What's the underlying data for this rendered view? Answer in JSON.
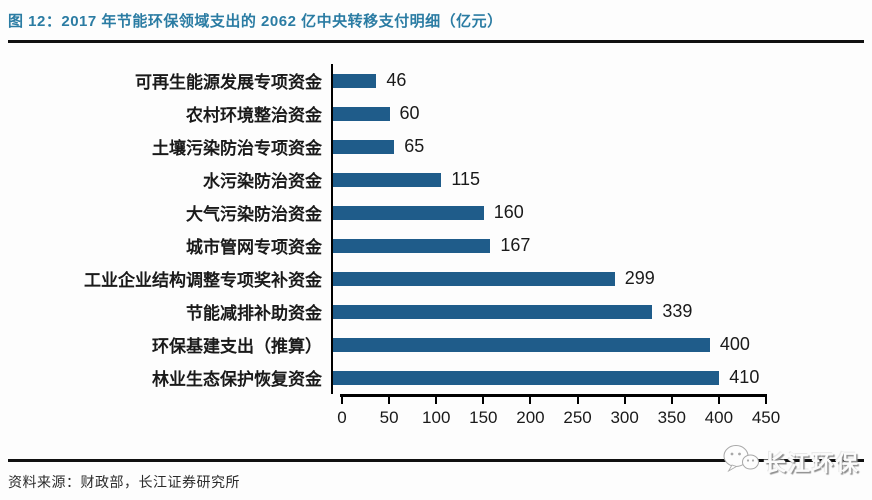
{
  "figure": {
    "title": "图 12：2017 年节能环保领域支出的 2062 亿中央转移支付明细（亿元）",
    "source": "资料来源：财政部，长江证券研究所",
    "watermark": {
      "icon": "wechat-icon",
      "label": "长江环保"
    }
  },
  "colors": {
    "bar": "#1F5C8A",
    "title": "#2B7CA3",
    "axis": "#111111",
    "text": "#1A1A1A"
  },
  "chart_data": {
    "type": "bar",
    "orientation": "horizontal",
    "title": "2017 年节能环保领域支出的 2062 亿中央转移支付明细（亿元）",
    "categories": [
      "可再生能源发展专项资金",
      "农村环境整治资金",
      "土壤污染防治专项资金",
      "水污染防治资金",
      "大气污染防治资金",
      "城市管网专项资金",
      "工业企业结构调整专项奖补资金",
      "节能减排补助资金",
      "环保基建支出（推算）",
      "林业生态保护恢复资金"
    ],
    "values": [
      46,
      60,
      65,
      115,
      160,
      167,
      299,
      339,
      400,
      410
    ],
    "xlim": [
      0,
      450
    ],
    "xticks": [
      0,
      50,
      100,
      150,
      200,
      250,
      300,
      350,
      400,
      450
    ],
    "value_labels": true,
    "grid": false,
    "legend": "none",
    "unit": "亿元"
  }
}
